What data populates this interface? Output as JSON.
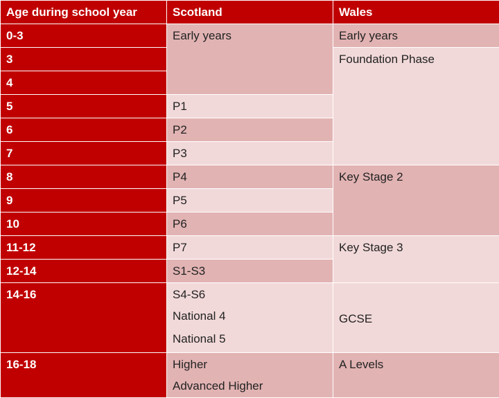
{
  "headers": [
    "Age during school year",
    "Scotland",
    "Wales"
  ],
  "ages": [
    "0-3",
    "3",
    "4",
    "5",
    "6",
    "7",
    "8",
    "9",
    "10",
    "11-12",
    "12-14",
    "14-16",
    "16-18"
  ],
  "scotland": {
    "early_years": "Early years",
    "p1": "P1",
    "p2": "P2",
    "p3": "P3",
    "p4": "P4",
    "p5": "P5",
    "p6": "P6",
    "p7": "P7",
    "s1_s3": "S1-S3",
    "s4_s6": [
      "S4-S6",
      "National 4",
      "National 5"
    ],
    "higher": [
      "Higher",
      "Advanced Higher"
    ]
  },
  "wales": {
    "early_years": "Early years",
    "foundation": "Foundation Phase",
    "ks2": "Key Stage 2",
    "ks3": "Key Stage 3",
    "gcse": "GCSE",
    "a_levels": "A Levels"
  }
}
